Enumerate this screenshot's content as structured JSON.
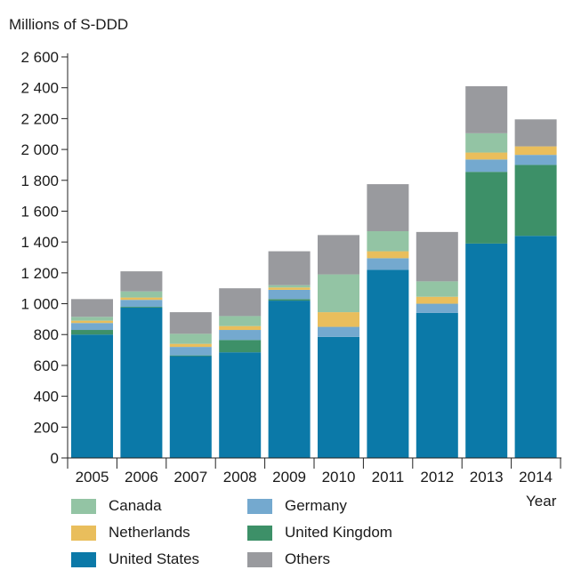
{
  "chart_data": {
    "type": "bar",
    "stacked": true,
    "ylabel": "Millions of S-DDD",
    "xlabel": "Year",
    "ylim": [
      0,
      2600
    ],
    "yticks": [
      0,
      200,
      400,
      600,
      800,
      1000,
      1200,
      1400,
      1600,
      1800,
      2000,
      2200,
      2400,
      2600
    ],
    "ytick_labels": [
      "0",
      "200",
      "400",
      "600",
      "800",
      "1 000",
      "1 200",
      "1 400",
      "1 600",
      "1 800",
      "2 000",
      "2 200",
      "2 400",
      "2 600"
    ],
    "categories": [
      "2005",
      "2006",
      "2007",
      "2008",
      "2009",
      "2010",
      "2011",
      "2012",
      "2013",
      "2014"
    ],
    "series": [
      {
        "name": "United States",
        "color": "#0b79a8",
        "values": [
          800,
          975,
          660,
          685,
          1020,
          785,
          1220,
          940,
          1390,
          1440
        ]
      },
      {
        "name": "United Kingdom",
        "color": "#3d9068",
        "values": [
          30,
          5,
          5,
          80,
          10,
          0,
          0,
          0,
          465,
          460
        ]
      },
      {
        "name": "Germany",
        "color": "#74a9cf",
        "values": [
          45,
          45,
          55,
          65,
          60,
          65,
          75,
          60,
          80,
          65
        ]
      },
      {
        "name": "Netherlands",
        "color": "#e9be5c",
        "values": [
          15,
          15,
          20,
          25,
          15,
          95,
          45,
          45,
          45,
          55
        ]
      },
      {
        "name": "Canada",
        "color": "#93c4a4",
        "values": [
          25,
          40,
          65,
          65,
          15,
          245,
          130,
          100,
          125,
          0
        ]
      },
      {
        "name": "Others",
        "color": "#999a9e",
        "values": [
          115,
          130,
          140,
          180,
          220,
          255,
          305,
          320,
          305,
          175
        ]
      }
    ],
    "legend": {
      "position": "bottom",
      "order": [
        "Canada",
        "Germany",
        "Netherlands",
        "United Kingdom",
        "United States",
        "Others"
      ]
    },
    "grid": false
  }
}
